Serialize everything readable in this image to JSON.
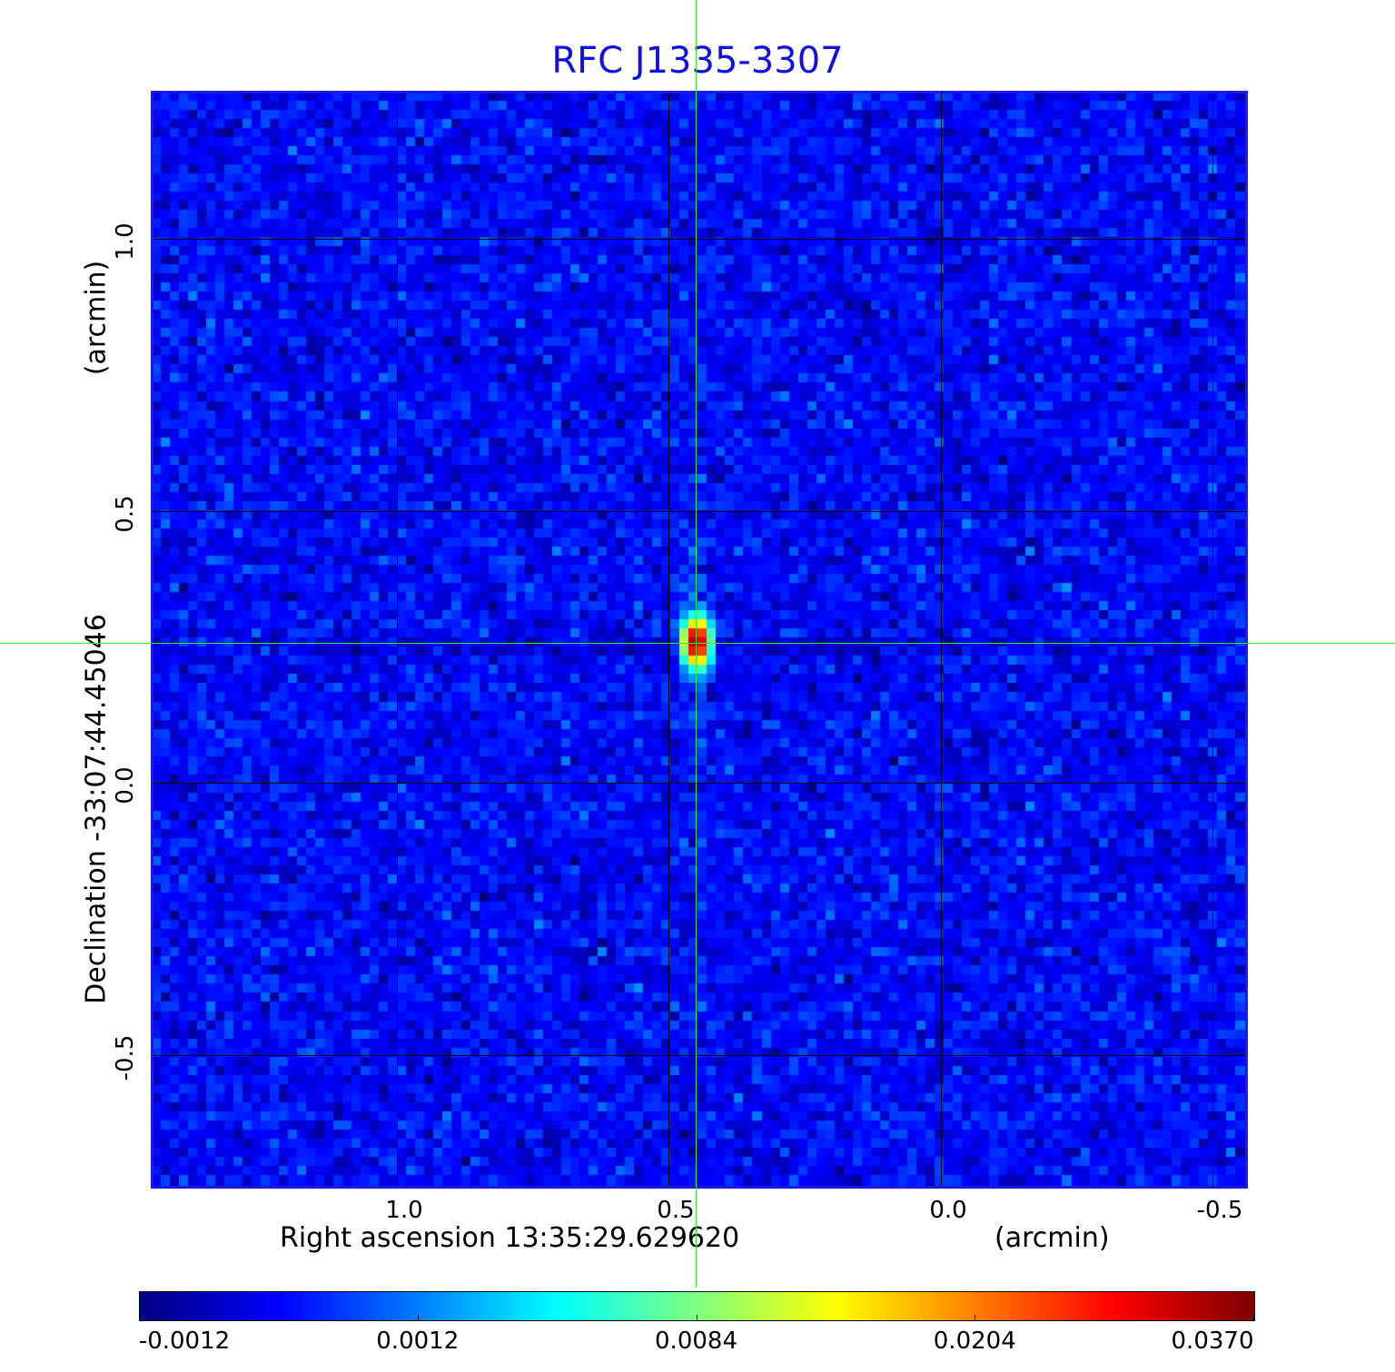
{
  "chart_data": {
    "type": "heatmap",
    "title": "RFC J1335-3307",
    "xlabel": "Right ascension  13:35:29.629620",
    "xunit": "(arcmin)",
    "ylabel": "Declination  -33:07:44.45046",
    "yunit": "(arcmin)",
    "x_ticks": [
      "1.0",
      "0.5",
      "0.0",
      "-0.5"
    ],
    "x_tick_values": [
      1.0,
      0.5,
      0.0,
      -0.5
    ],
    "y_ticks": [
      "1.0",
      "0.5",
      "0.0",
      "-0.5"
    ],
    "y_tick_values": [
      1.0,
      0.5,
      0.0,
      -0.5
    ],
    "xlim": [
      1.45,
      -0.56
    ],
    "ylim": [
      -0.74,
      1.27
    ],
    "x_reversed": true,
    "grid": true,
    "colormap": "jet",
    "colorbar": {
      "placement": "bottom",
      "ticks": [
        "-0.0012",
        "0.0012",
        "0.0084",
        "0.0204",
        "0.0370"
      ],
      "tick_values": [
        -0.0012,
        0.0012,
        0.0084,
        0.0204,
        0.037
      ]
    },
    "source": {
      "x": 0.447,
      "y": 0.257,
      "peak": 0.037
    },
    "crosshair": {
      "x": 0.447,
      "y": 0.257,
      "color": "#33ee33"
    },
    "background_noise_level": 0.0004,
    "colors": {
      "title": "#1010e0",
      "frame": "#1a1ae6",
      "grid": "#000000"
    }
  }
}
